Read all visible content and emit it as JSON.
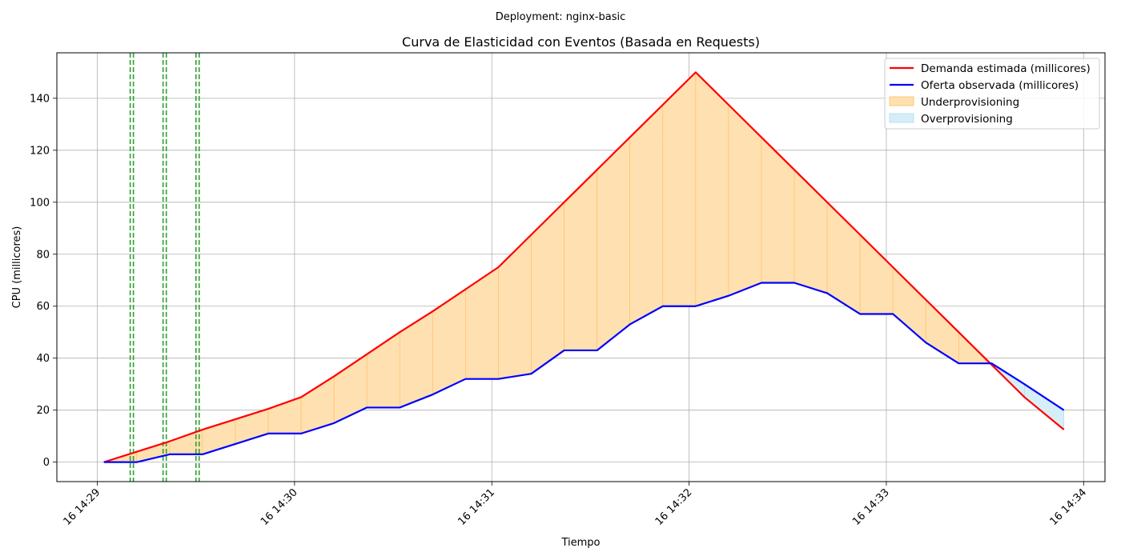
{
  "chart_data": {
    "type": "line",
    "suptitle": "Deployment: nginx-basic",
    "title": "Curva de Elasticidad con Eventos (Basada en Requests)",
    "xlabel": "Tiempo",
    "ylabel": "CPU (millicores)",
    "x_ticks": [
      {
        "t": 0,
        "label": "16 14:29"
      },
      {
        "t": 60,
        "label": "16 14:30"
      },
      {
        "t": 120,
        "label": "16 14:31"
      },
      {
        "t": 180,
        "label": "16 14:32"
      },
      {
        "t": 240,
        "label": "16 14:33"
      },
      {
        "t": 300,
        "label": "16 14:34"
      }
    ],
    "xlim": [
      -12.3,
      306.5
    ],
    "ylim": [
      -7.5,
      157.5
    ],
    "yticks": [
      0,
      20,
      40,
      60,
      80,
      100,
      120,
      140
    ],
    "grid": true,
    "legend_position": "top-right",
    "series": [
      {
        "name": "Demanda estimada (millicores)",
        "color": "#ff0000",
        "t": [
          2,
          12,
          22,
          32,
          42,
          52,
          62,
          72,
          82,
          92,
          102,
          112,
          122,
          132,
          142,
          152,
          162,
          172,
          182,
          192,
          202,
          212,
          222,
          232,
          242,
          252,
          262,
          272,
          282,
          294
        ],
        "values": [
          0,
          4,
          8,
          12.5,
          16.5,
          20.5,
          25,
          33,
          41.5,
          50,
          58,
          66.5,
          75,
          87.5,
          100,
          112.5,
          125,
          137.5,
          150,
          137.5,
          125,
          112.5,
          100,
          87.5,
          75,
          62.5,
          50,
          37.5,
          25,
          12.5
        ]
      },
      {
        "name": "Oferta observada (millicores)",
        "color": "#0000ff",
        "t": [
          2,
          12,
          22,
          32,
          42,
          52,
          62,
          72,
          82,
          92,
          102,
          112,
          122,
          132,
          142,
          152,
          162,
          172,
          182,
          192,
          202,
          212,
          222,
          232,
          242,
          252,
          262,
          272,
          282,
          294
        ],
        "values": [
          0,
          0,
          3,
          3,
          7,
          11,
          11,
          15,
          21,
          21,
          26,
          32,
          32,
          34,
          43,
          43,
          53,
          60,
          60,
          64,
          69,
          69,
          65,
          57,
          57,
          46,
          38,
          38,
          30,
          20
        ]
      }
    ],
    "areas": [
      {
        "name": "Underprovisioning",
        "color": "#ffe0b0",
        "edge": "#ffbf60"
      },
      {
        "name": "Overprovisioning",
        "color": "#d6eef8",
        "edge": "#a8dcf0"
      }
    ],
    "events": {
      "color": "#2ca02c",
      "t": [
        10.5,
        20.5,
        30.5
      ]
    }
  }
}
